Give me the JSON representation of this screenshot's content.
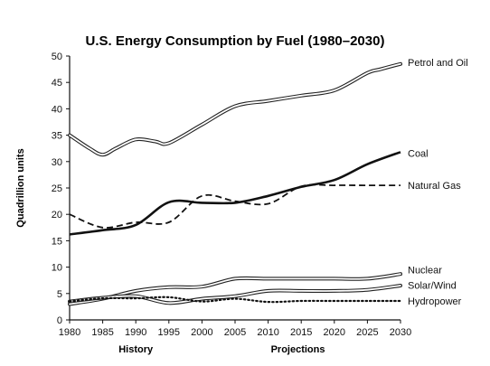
{
  "chart_data": {
    "type": "line",
    "title": "U.S. Energy Consumption by Fuel (1980–2030)",
    "xlabel": "",
    "ylabel": "Quadrillion units",
    "xlim": [
      1980,
      2030
    ],
    "ylim": [
      0,
      50
    ],
    "x_ticks": [
      1980,
      1985,
      1990,
      1995,
      2000,
      2005,
      2010,
      2015,
      2020,
      2025,
      2030
    ],
    "y_ticks": [
      0,
      5,
      10,
      15,
      20,
      25,
      30,
      35,
      40,
      45,
      50
    ],
    "grid": false,
    "period_labels": [
      {
        "text": "History",
        "x": 1990
      },
      {
        "text": "Projections",
        "x": 2014.5
      }
    ],
    "series": [
      {
        "name": "Petrol and Oil",
        "style": "double",
        "x": [
          1980,
          1983,
          1985,
          1987,
          1990,
          1993,
          1995,
          2000,
          2005,
          2010,
          2015,
          2020,
          2025,
          2027,
          2030
        ],
        "y": [
          35,
          32.5,
          31.3,
          32.5,
          34.2,
          33.8,
          33.5,
          37,
          40.5,
          41.5,
          42.5,
          43.5,
          46.8,
          47.5,
          48.5
        ]
      },
      {
        "name": "Coal",
        "style": "solid",
        "x": [
          1980,
          1985,
          1990,
          1995,
          2000,
          2005,
          2010,
          2015,
          2020,
          2025,
          2030
        ],
        "y": [
          16.2,
          17,
          18,
          22.3,
          22.2,
          22.2,
          23.5,
          25.2,
          26.5,
          29.5,
          31.8
        ]
      },
      {
        "name": "Natural Gas",
        "style": "dashed",
        "x": [
          1980,
          1985,
          1990,
          1995,
          2000,
          2005,
          2010,
          2015,
          2020,
          2025,
          2030
        ],
        "y": [
          20,
          17.5,
          18.5,
          18.5,
          23.5,
          22.5,
          22,
          25.3,
          25.5,
          25.5,
          25.5
        ]
      },
      {
        "name": "Nuclear",
        "style": "double",
        "x": [
          1980,
          1985,
          1990,
          1995,
          2000,
          2005,
          2010,
          2015,
          2020,
          2025,
          2030
        ],
        "y": [
          3,
          4,
          5.5,
          6.2,
          6.3,
          7.8,
          7.8,
          7.8,
          7.8,
          7.8,
          8.7
        ]
      },
      {
        "name": "Solar/Wind",
        "style": "double",
        "x": [
          1980,
          1985,
          1990,
          1995,
          2000,
          2005,
          2010,
          2015,
          2020,
          2025,
          2030
        ],
        "y": [
          3.5,
          4.2,
          4.5,
          3.2,
          4,
          4.5,
          5.5,
          5.5,
          5.5,
          5.7,
          6.5
        ]
      },
      {
        "name": "Hydropower",
        "style": "dotted",
        "x": [
          1980,
          1985,
          1990,
          1995,
          2000,
          2005,
          2010,
          2015,
          2020,
          2025,
          2030
        ],
        "y": [
          3.5,
          4.1,
          4.1,
          4.3,
          3.5,
          4,
          3.4,
          3.6,
          3.6,
          3.6,
          3.6
        ]
      }
    ]
  }
}
